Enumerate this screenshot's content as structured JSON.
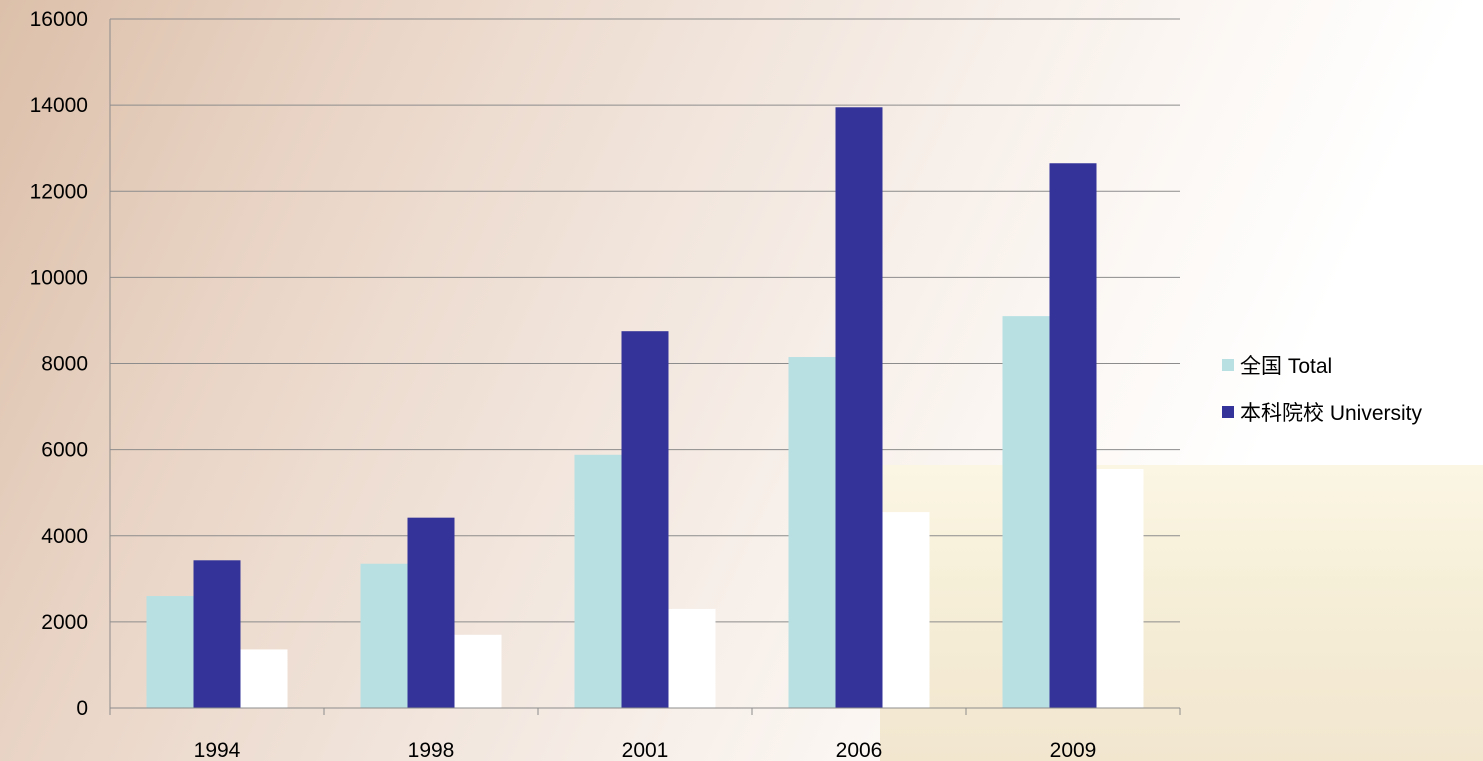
{
  "chart_data": {
    "type": "bar",
    "categories": [
      "1994",
      "1998",
      "2001",
      "2006",
      "2009"
    ],
    "series": [
      {
        "name": "全国 Total",
        "color": "#b8e0e3",
        "values": [
          2600,
          3350,
          5880,
          8150,
          9100
        ]
      },
      {
        "name": "本科院校 University",
        "color": "#333399",
        "values": [
          3430,
          4420,
          8750,
          13950,
          12650
        ]
      },
      {
        "name": "",
        "color": "#ffffff",
        "values": [
          1360,
          1700,
          2300,
          4550,
          5550
        ]
      }
    ],
    "y_ticks": [
      "0",
      "2000",
      "4000",
      "6000",
      "8000",
      "10000",
      "12000",
      "14000",
      "16000"
    ],
    "ylim": [
      0,
      16000
    ],
    "grid": true,
    "legend_position": "right",
    "title": "",
    "xlabel": "",
    "ylabel": ""
  }
}
